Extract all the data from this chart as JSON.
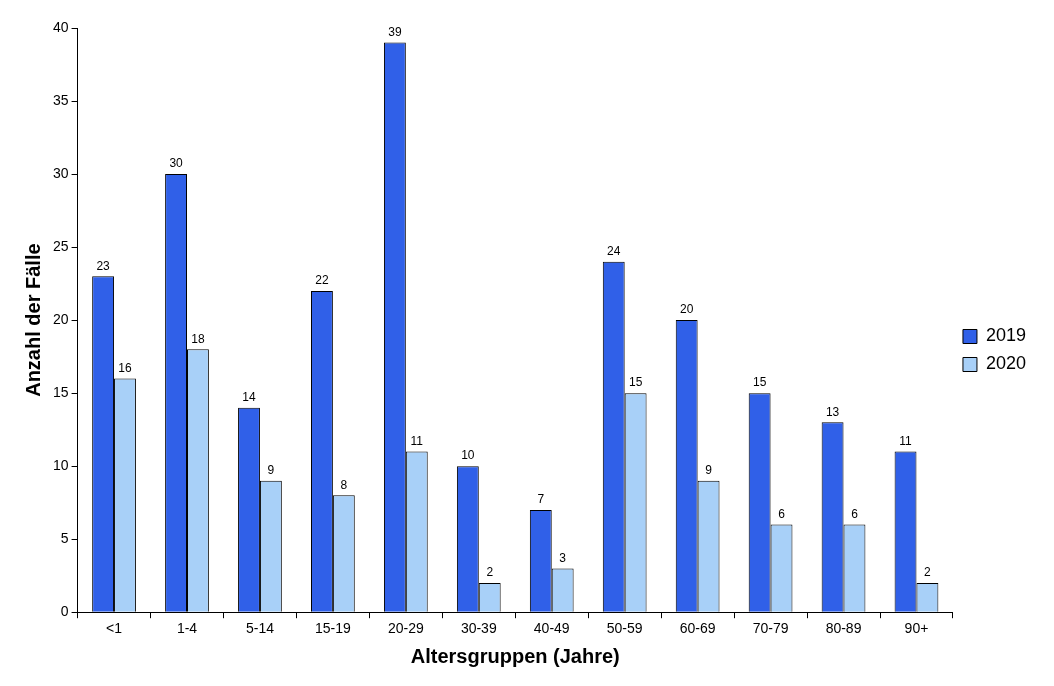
{
  "chart_data": {
    "type": "bar",
    "xlabel": "Altersgruppen (Jahre)",
    "ylabel": "Anzahl der Fälle",
    "categories": [
      "<1",
      "1-4",
      "5-14",
      "15-19",
      "20-29",
      "30-39",
      "40-49",
      "50-59",
      "60-69",
      "70-79",
      "80-89",
      "90+"
    ],
    "series": [
      {
        "name": "2019",
        "color": "#3060e8",
        "values": [
          23,
          30,
          14,
          22,
          39,
          10,
          7,
          24,
          20,
          15,
          13,
          11
        ]
      },
      {
        "name": "2020",
        "color": "#a8d0f8",
        "values": [
          16,
          18,
          9,
          8,
          11,
          2,
          3,
          15,
          9,
          6,
          6,
          2
        ]
      }
    ],
    "ylim": [
      0,
      40
    ],
    "yticks": [
      0,
      5,
      10,
      15,
      20,
      25,
      30,
      35,
      40
    ],
    "grid": false,
    "legend": "right",
    "data_labels": true
  }
}
